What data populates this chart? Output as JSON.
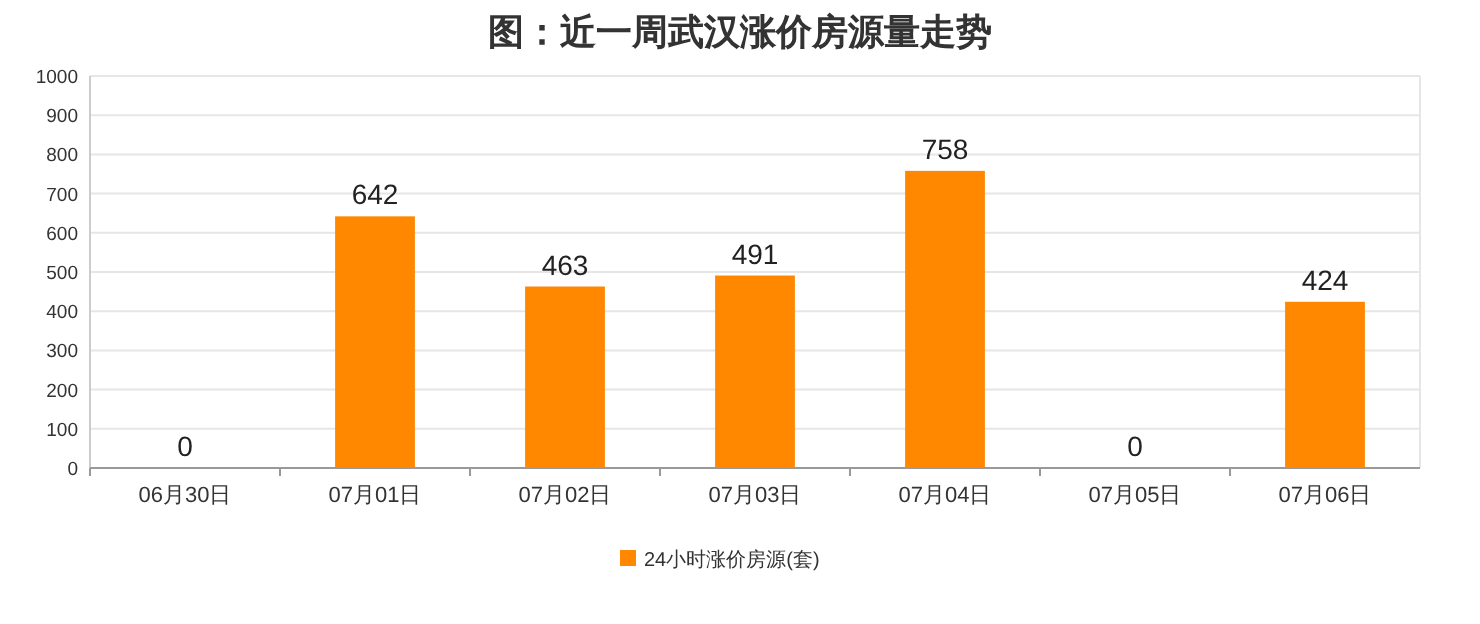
{
  "chart_data": {
    "type": "bar",
    "title": "图：近一周武汉涨价房源量走势",
    "categories": [
      "06月30日",
      "07月01日",
      "07月02日",
      "07月03日",
      "07月04日",
      "07月05日",
      "07月06日"
    ],
    "series": [
      {
        "name": "24小时涨价房源(套)",
        "color": "#ff8800",
        "values": [
          0,
          642,
          463,
          491,
          758,
          0,
          424
        ]
      }
    ],
    "ylim": [
      0,
      1000
    ],
    "yticks": [
      0,
      100,
      200,
      300,
      400,
      500,
      600,
      700,
      800,
      900,
      1000
    ],
    "grid": "y",
    "legend": "bottom",
    "data_labels": true
  }
}
